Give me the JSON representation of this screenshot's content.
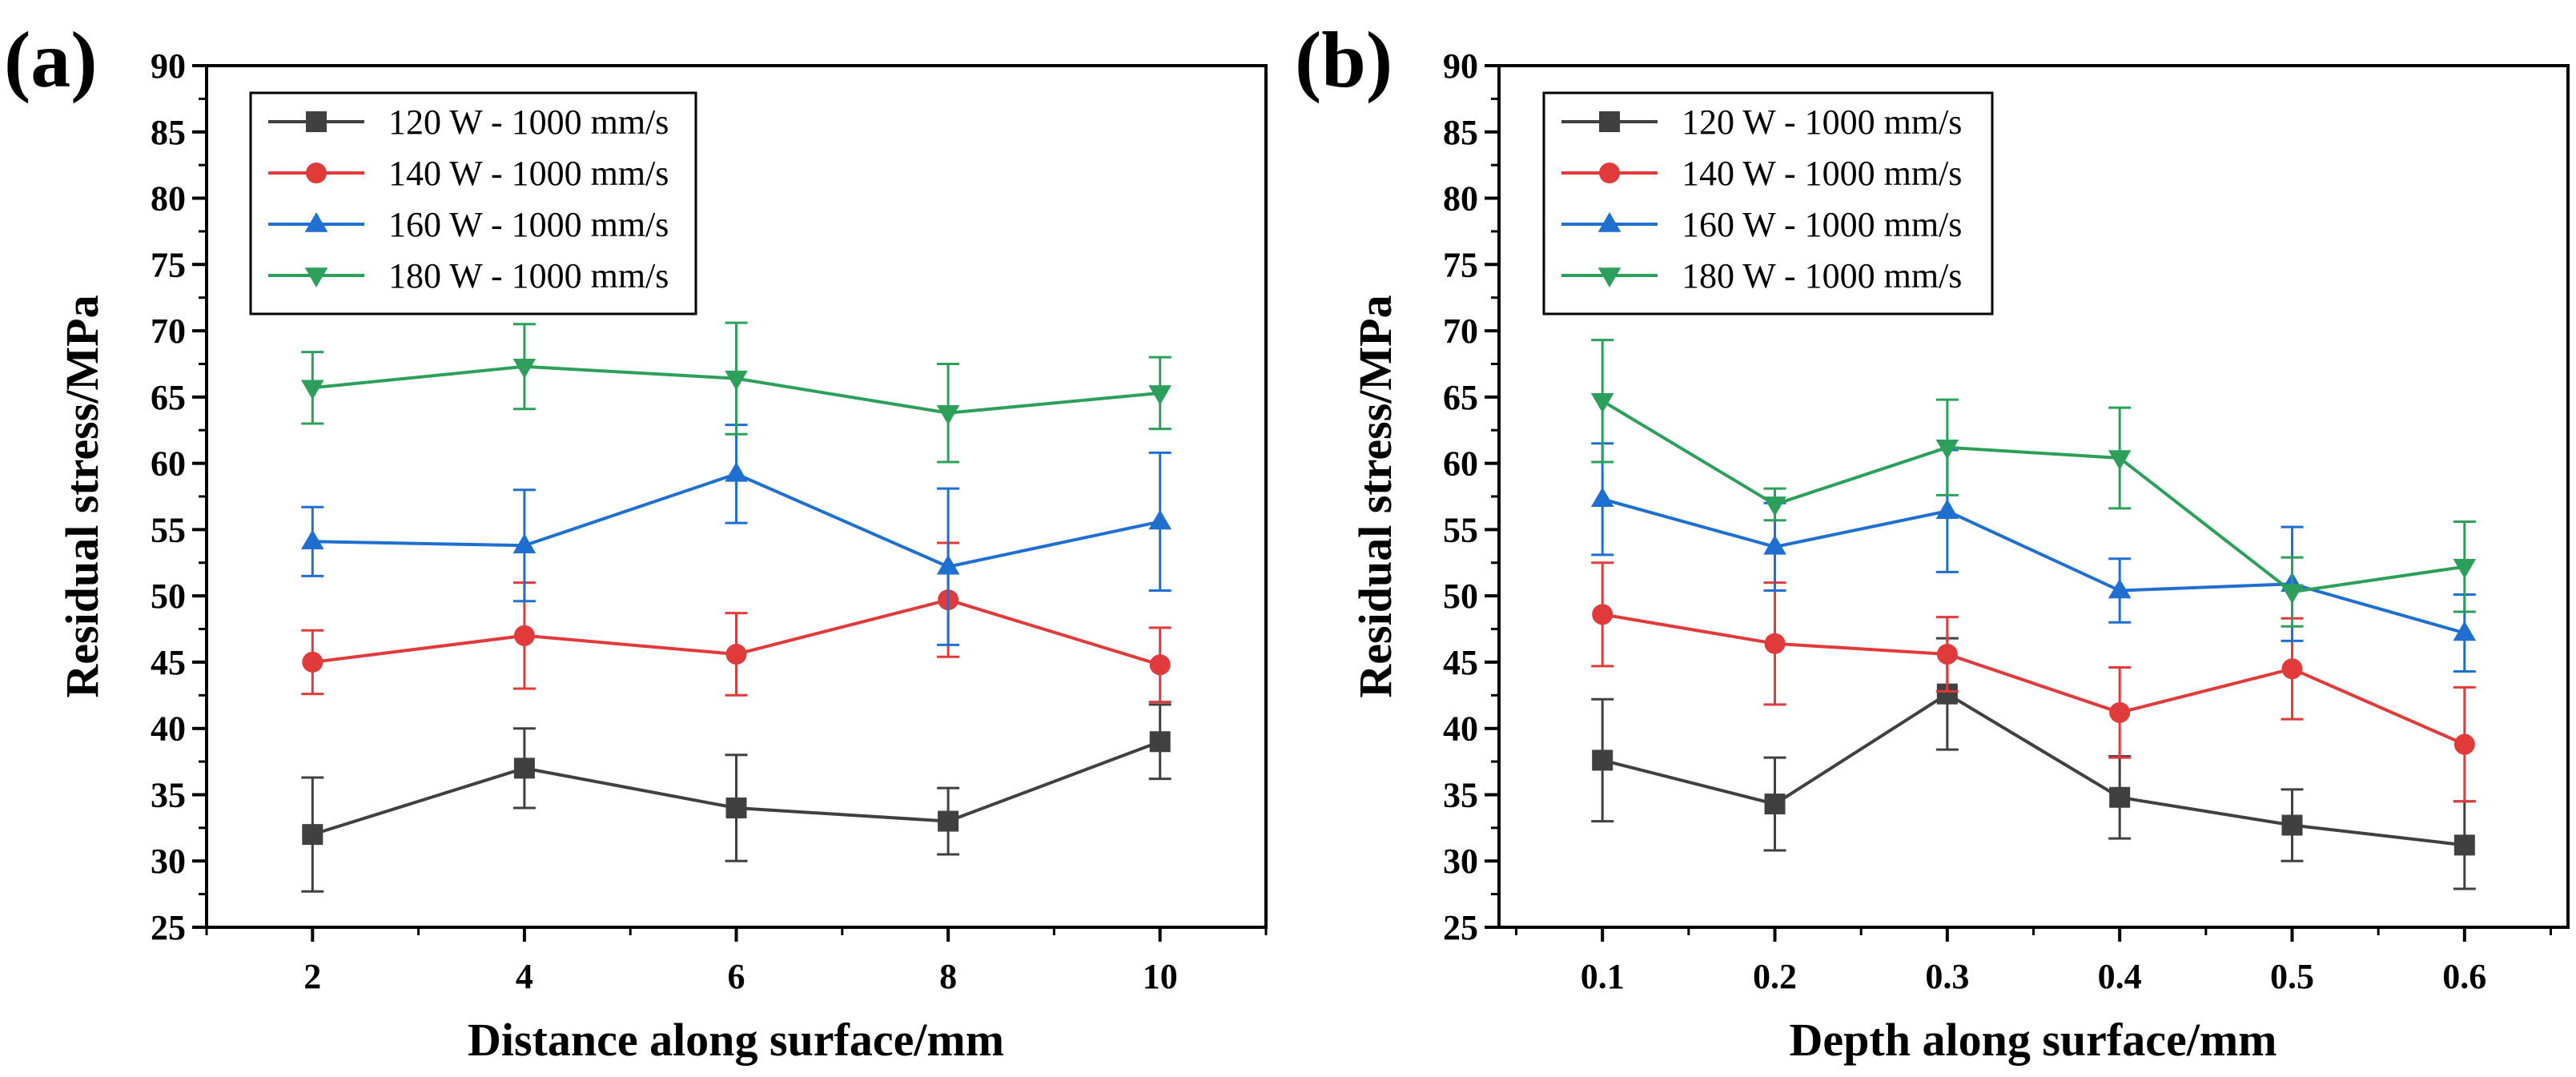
{
  "chart_data": [
    {
      "type": "line",
      "panel_label": "(a)",
      "xlabel": "Distance along surface/mm",
      "ylabel": "Residual stress/MPa",
      "x": [
        2,
        4,
        6,
        8,
        10
      ],
      "xlim": [
        1,
        11
      ],
      "ylim": [
        25,
        90
      ],
      "xticks": [
        2,
        4,
        6,
        8,
        10
      ],
      "xtick_labels": [
        "2",
        "4",
        "6",
        "8",
        "10"
      ],
      "yticks": [
        25,
        30,
        35,
        40,
        45,
        50,
        55,
        60,
        65,
        70,
        75,
        80,
        85,
        90
      ],
      "ytick_labels": [
        "25",
        "30",
        "35",
        "40",
        "45",
        "50",
        "55",
        "60",
        "65",
        "70",
        "75",
        "80",
        "85",
        "90"
      ],
      "legend_position": "top-left",
      "series": [
        {
          "name": "120 W - 1000 mm/s",
          "color": "#404040",
          "marker": "square",
          "values": [
            32.0,
            37.0,
            34.0,
            33.0,
            39.0
          ],
          "errors": [
            4.3,
            3.0,
            4.0,
            2.5,
            2.8
          ]
        },
        {
          "name": "140 W - 1000 mm/s",
          "color": "#e03a3a",
          "marker": "circle",
          "values": [
            45.0,
            47.0,
            45.6,
            49.7,
            44.8
          ],
          "errors": [
            2.4,
            4.0,
            3.1,
            4.3,
            2.8
          ]
        },
        {
          "name": "160 W - 1000 mm/s",
          "color": "#1f6fd1",
          "marker": "triangle-up",
          "values": [
            54.1,
            53.8,
            59.2,
            52.2,
            55.6
          ],
          "errors": [
            2.6,
            4.2,
            3.7,
            5.9,
            5.2
          ]
        },
        {
          "name": "180 W - 1000 mm/s",
          "color": "#2ca05a",
          "marker": "triangle-down",
          "values": [
            65.7,
            67.3,
            66.4,
            63.8,
            65.3
          ],
          "errors": [
            2.7,
            3.2,
            4.2,
            3.7,
            2.7
          ]
        }
      ]
    },
    {
      "type": "line",
      "panel_label": "(b)",
      "xlabel": "Depth along surface/mm",
      "ylabel": "Residual stress/MPa",
      "x": [
        0.1,
        0.2,
        0.3,
        0.4,
        0.5,
        0.6
      ],
      "xlim": [
        0.04,
        0.66
      ],
      "ylim": [
        25,
        90
      ],
      "xticks": [
        0.1,
        0.2,
        0.3,
        0.4,
        0.5,
        0.6
      ],
      "xtick_labels": [
        "0.1",
        "0.2",
        "0.3",
        "0.4",
        "0.5",
        "0.6"
      ],
      "yticks": [
        25,
        30,
        35,
        40,
        45,
        50,
        55,
        60,
        65,
        70,
        75,
        80,
        85,
        90
      ],
      "ytick_labels": [
        "25",
        "30",
        "35",
        "40",
        "45",
        "50",
        "55",
        "60",
        "65",
        "70",
        "75",
        "80",
        "85",
        "90"
      ],
      "legend_position": "top-left",
      "series": [
        {
          "name": "120 W - 1000 mm/s",
          "color": "#404040",
          "marker": "square",
          "values": [
            37.6,
            34.3,
            42.6,
            34.8,
            32.7,
            31.2
          ],
          "errors": [
            4.6,
            3.5,
            4.2,
            3.1,
            2.7,
            3.3
          ]
        },
        {
          "name": "140 W - 1000 mm/s",
          "color": "#e03a3a",
          "marker": "circle",
          "values": [
            48.6,
            46.4,
            45.6,
            41.2,
            44.5,
            38.8
          ],
          "errors": [
            3.9,
            4.6,
            2.8,
            3.4,
            3.8,
            4.3
          ]
        },
        {
          "name": "160 W - 1000 mm/s",
          "color": "#1f6fd1",
          "marker": "triangle-up",
          "values": [
            57.3,
            53.7,
            56.4,
            50.4,
            50.9,
            47.2
          ],
          "errors": [
            4.2,
            3.3,
            4.6,
            2.4,
            4.3,
            2.9
          ]
        },
        {
          "name": "180 W - 1000 mm/s",
          "color": "#2ca05a",
          "marker": "triangle-down",
          "values": [
            64.7,
            56.9,
            61.2,
            60.4,
            50.3,
            52.2
          ],
          "errors": [
            4.6,
            1.2,
            3.6,
            3.8,
            2.6,
            3.4
          ]
        }
      ]
    }
  ]
}
